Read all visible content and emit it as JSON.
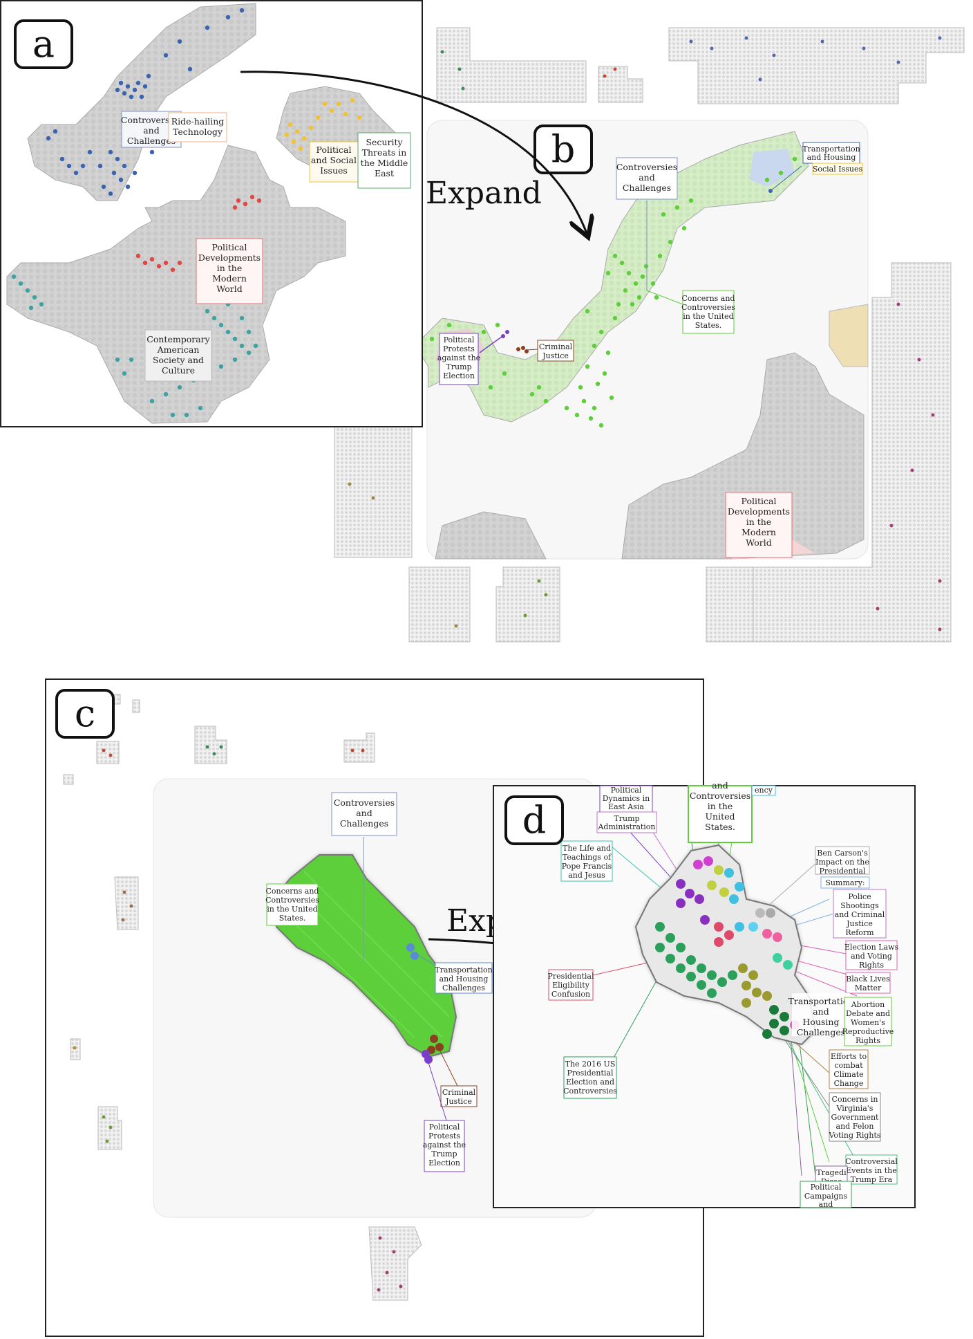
{
  "panels": {
    "a": {
      "letter": "a",
      "labels": {
        "controversies": [
          "Controversies",
          "and",
          "Challenges"
        ],
        "ride_hailing": [
          "Ride-hailing",
          "Technology"
        ],
        "political_social": [
          "Political",
          "and Social",
          "Issues"
        ],
        "security": [
          "Security",
          "Threats in",
          "the Middle",
          "East"
        ],
        "political_dev": [
          "Political",
          "Developments",
          "in the",
          "Modern",
          "World"
        ],
        "contemporary": [
          "Contemporary",
          "American",
          "Society and",
          "Culture"
        ]
      }
    },
    "b": {
      "letter": "b",
      "labels": {
        "controversies": [
          "Controversies",
          "and",
          "Challenges"
        ],
        "transportation": [
          "Transportation",
          "and Housing"
        ],
        "social_issues": [
          "Social Issues"
        ],
        "concerns": [
          "Concerns and",
          "Controversies",
          "in the United",
          "States."
        ],
        "political_protests": [
          "Political",
          "Protests",
          "against the",
          "Trump",
          "Election"
        ],
        "criminal_justice": [
          "Criminal",
          "Justice"
        ],
        "political_dev": [
          "Political",
          "Developments",
          "in the",
          "Modern",
          "World"
        ]
      }
    },
    "c": {
      "letter": "c",
      "labels": {
        "controversies": [
          "Controversies",
          "and",
          "Challenges"
        ],
        "concerns": [
          "Concerns and",
          "Controversies",
          "in the United",
          "States."
        ],
        "transportation": [
          "Transportation",
          "and Housing",
          "Challenges"
        ],
        "criminal_justice": [
          "Criminal",
          "Justice"
        ],
        "political_protests": [
          "Political",
          "Protests",
          "against the",
          "Trump",
          "Election"
        ]
      }
    },
    "d": {
      "letter": "d",
      "labels": {
        "political_dynamics": [
          "Political",
          "Dynamics in",
          "East Asia"
        ],
        "trump_admin": [
          "Trump",
          "Administration"
        ],
        "controversies_us": [
          "and",
          "Controversies",
          "in the",
          "United",
          "States."
        ],
        "ency": [
          "ency"
        ],
        "pope": [
          "The Life and",
          "Teachings of",
          "Pope Francis",
          "and Jesus"
        ],
        "ben_carson": [
          "Ben Carson's",
          "Impact on the",
          "Presidential"
        ],
        "summary": [
          "Summary:"
        ],
        "police": [
          "Police",
          "Shootings",
          "and Criminal",
          "Justice",
          "Reform"
        ],
        "election_laws": [
          "Election Laws",
          "and Voting",
          "Rights"
        ],
        "black_lives": [
          "Black Lives",
          "Matter"
        ],
        "presidential_eligibility": [
          "Presidential",
          "Eligibility",
          "Confusion"
        ],
        "transportation": [
          "Transportation",
          "and",
          "Housing",
          "Challenges"
        ],
        "abortion": [
          "Abortion",
          "Debate and",
          "Women's",
          "Reproductive",
          "Rights"
        ],
        "climate": [
          "Efforts to",
          "combat",
          "Climate",
          "Change"
        ],
        "virginia": [
          "Concerns in",
          "Virginia's",
          "Government",
          "and Felon",
          "Voting Rights"
        ],
        "election_2016": [
          "The 2016 US",
          "Presidential",
          "Election and",
          "Controversies"
        ],
        "controversial_events": [
          "Controversial",
          "Events in the",
          "Trump Era"
        ],
        "tragedies": [
          "Tragedi",
          "Disas"
        ],
        "political_campaigns": [
          "Political",
          "Campaigns",
          "and"
        ]
      }
    }
  },
  "expand_labels": [
    "Expand",
    "Expand"
  ],
  "colors": {
    "blue": "#3a64b0",
    "yellow": "#f2c233",
    "green_dark": "#3d8a5a",
    "red": "#e04848",
    "teal": "#3da3a0",
    "light_green": "#7ddc4a",
    "purple": "#7a3fc8",
    "brown": "#8a4020",
    "gray_region": "#d8d8d8"
  }
}
